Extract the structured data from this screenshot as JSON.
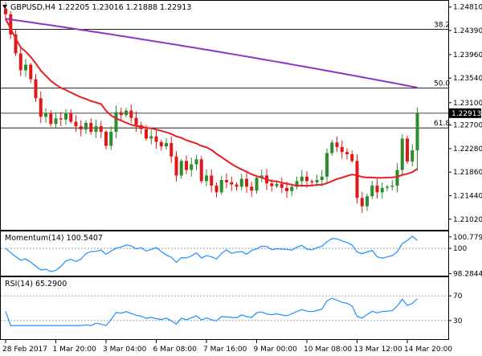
{
  "header": {
    "main": "GBPUSD,H4  1.22205 1.23016 1.21888 1.22913",
    "momentum": "Momentum(14) 100.5407",
    "rsi": "RSI(14) 65.2900"
  },
  "chart_data": {
    "type": "candlestick",
    "symbol": "GBPUSD",
    "timeframe": "H4",
    "ohlc_header": {
      "open": 1.22205,
      "high": 1.23016,
      "low": 1.21888,
      "close": 1.22913
    },
    "price_axis": {
      "range": [
        1.2083,
        1.2492
      ],
      "ticks": [
        "1.24810",
        "1.24390",
        "1.23960",
        "1.23540",
        "1.23100",
        "1.22700",
        "1.22280",
        "1.21860",
        "1.21440",
        "1.21020"
      ]
    },
    "current_price": {
      "value": 1.22913,
      "label": "1.22913"
    },
    "fibonacci": [
      {
        "label": "38.2",
        "value": 1.2441
      },
      {
        "label": "50.0",
        "value": 1.2336
      },
      {
        "label": "61.8",
        "value": 1.2265
      }
    ],
    "x_tick_labels": [
      {
        "label": "28 Feb 2017",
        "index": 0
      },
      {
        "label": "1 Mar 20:00",
        "index": 10
      },
      {
        "label": "3 Mar 04:00",
        "index": 20
      },
      {
        "label": "6 Mar 08:00",
        "index": 30
      },
      {
        "label": "7 Mar 16:00",
        "index": 40
      },
      {
        "label": "9 Mar 00:00",
        "index": 50
      },
      {
        "label": "10 Mar 08:00",
        "index": 60
      },
      {
        "label": "13 Mar 12:00",
        "index": 70
      },
      {
        "label": "14 Mar 20:00",
        "index": 80
      }
    ],
    "closes": [
      1.2468,
      1.2432,
      1.2398,
      1.2368,
      1.2378,
      1.2352,
      1.2318,
      1.2285,
      1.2292,
      1.2272,
      1.2282,
      1.228,
      1.2292,
      1.2276,
      1.2268,
      1.2262,
      1.2274,
      1.2258,
      1.2268,
      1.2258,
      1.2233,
      1.2258,
      1.2293,
      1.2288,
      1.2296,
      1.2283,
      1.227,
      1.2263,
      1.2246,
      1.225,
      1.224,
      1.2232,
      1.2238,
      1.2214,
      1.218,
      1.2206,
      1.219,
      1.22,
      1.2209,
      1.217,
      1.218,
      1.2162,
      1.215,
      1.2172,
      1.2168,
      1.2164,
      1.216,
      1.2174,
      1.216,
      1.2153,
      1.2176,
      1.218,
      1.2166,
      1.2161,
      1.2165,
      1.2158,
      1.2152,
      1.216,
      1.217,
      1.2178,
      1.217,
      1.2168,
      1.2172,
      1.2178,
      1.222,
      1.2239,
      1.2231,
      1.2222,
      1.2218,
      1.2206,
      1.214,
      1.2125,
      1.2143,
      1.2162,
      1.215,
      1.2158,
      1.216,
      1.2162,
      1.219,
      1.2246,
      1.2205,
      1.2225,
      1.2291
    ],
    "sma_fast": {
      "start": 1.246,
      "end": 1.2192
    },
    "sma_slow": {
      "start": 1.246,
      "end": 1.2337
    },
    "momentum": {
      "name": "Momentum(14)",
      "last": 100.5407,
      "range": [
        98.15,
        101.15
      ],
      "ticks": [
        "100.7792",
        "100",
        "98.2844"
      ]
    },
    "rsi": {
      "name": "RSI(14)",
      "last": 65.29,
      "range": [
        0,
        100
      ],
      "ticks": [
        "70",
        "30"
      ]
    },
    "colors": {
      "bull": "#2e8b2e",
      "bear": "#e01818",
      "sma_fast": "#e82020",
      "sma_slow": "#8a35c8",
      "indicator": "#1e90ff"
    }
  }
}
